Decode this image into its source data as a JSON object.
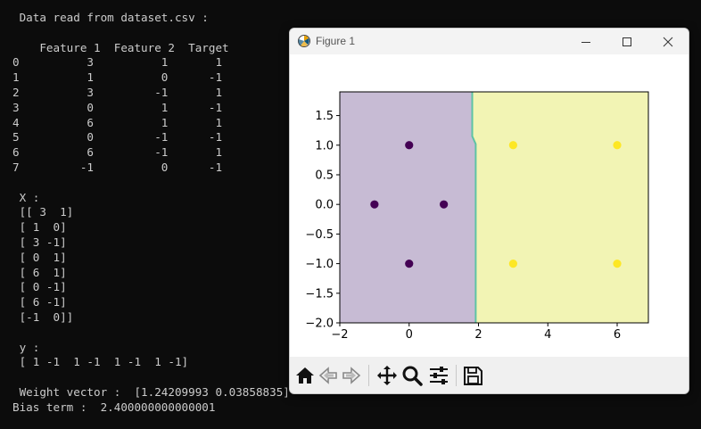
{
  "terminal": {
    "lines": [
      " Data read from dataset.csv :",
      "",
      "    Feature 1  Feature 2  Target",
      "0          3          1       1",
      "1          1          0      -1",
      "2          3         -1       1",
      "3          0          1      -1",
      "4          6          1       1",
      "5          0         -1      -1",
      "6          6         -1       1",
      "7         -1          0      -1",
      "",
      " X :",
      " [[ 3  1]",
      " [ 1  0]",
      " [ 3 -1]",
      " [ 0  1]",
      " [ 6  1]",
      " [ 0 -1]",
      " [ 6 -1]",
      " [-1  0]]",
      "",
      " y :",
      " [ 1 -1  1 -1  1 -1  1 -1]",
      "",
      " Weight vector :  [1.24209993 0.03858835]",
      "Bias term :  2.400000000000001"
    ]
  },
  "window": {
    "title": "Figure 1",
    "icons": {
      "app": "matplotlib-icon",
      "minimize": "minimize-icon",
      "maximize": "maximize-icon",
      "close": "close-icon"
    }
  },
  "toolbar": {
    "buttons": [
      "home-icon",
      "back-icon",
      "forward-icon",
      "pan-icon",
      "zoom-icon",
      "configure-subplots-icon",
      "save-icon"
    ]
  },
  "chart_data": {
    "type": "scatter",
    "title": "",
    "xlabel": "",
    "ylabel": "",
    "xlim": [
      -2,
      6.9
    ],
    "ylim": [
      -2.0,
      1.9
    ],
    "xticks": [
      -2,
      0,
      2,
      4,
      6
    ],
    "xtick_labels": [
      "−2",
      "0",
      "2",
      "4",
      "6"
    ],
    "yticks": [
      -2.0,
      -1.5,
      -1.0,
      -0.5,
      0.0,
      0.5,
      1.0,
      1.5
    ],
    "ytick_labels": [
      "−2.0",
      "−1.5",
      "−1.0",
      "−0.5",
      "0.0",
      "0.5",
      "1.0",
      "1.5"
    ],
    "grid": false,
    "points": [
      {
        "x": 3,
        "y": 1,
        "label": 1
      },
      {
        "x": 1,
        "y": 0,
        "label": -1
      },
      {
        "x": 3,
        "y": -1,
        "label": 1
      },
      {
        "x": 0,
        "y": 1,
        "label": -1
      },
      {
        "x": 6,
        "y": 1,
        "label": 1
      },
      {
        "x": 0,
        "y": -1,
        "label": -1
      },
      {
        "x": 6,
        "y": -1,
        "label": 1
      },
      {
        "x": -1,
        "y": 0,
        "label": -1
      }
    ],
    "decision_boundary": [
      {
        "x": 1.82,
        "y": 1.9
      },
      {
        "x": 1.82,
        "y": 1.15
      },
      {
        "x": 1.92,
        "y": 1.02
      },
      {
        "x": 1.92,
        "y": -2.0
      }
    ],
    "colors": {
      "class_pos": "#fde725",
      "class_neg": "#440154",
      "region_pos": "#f2f4b4",
      "region_neg": "#c7bbd4",
      "boundary": "#5ec3a4"
    }
  }
}
